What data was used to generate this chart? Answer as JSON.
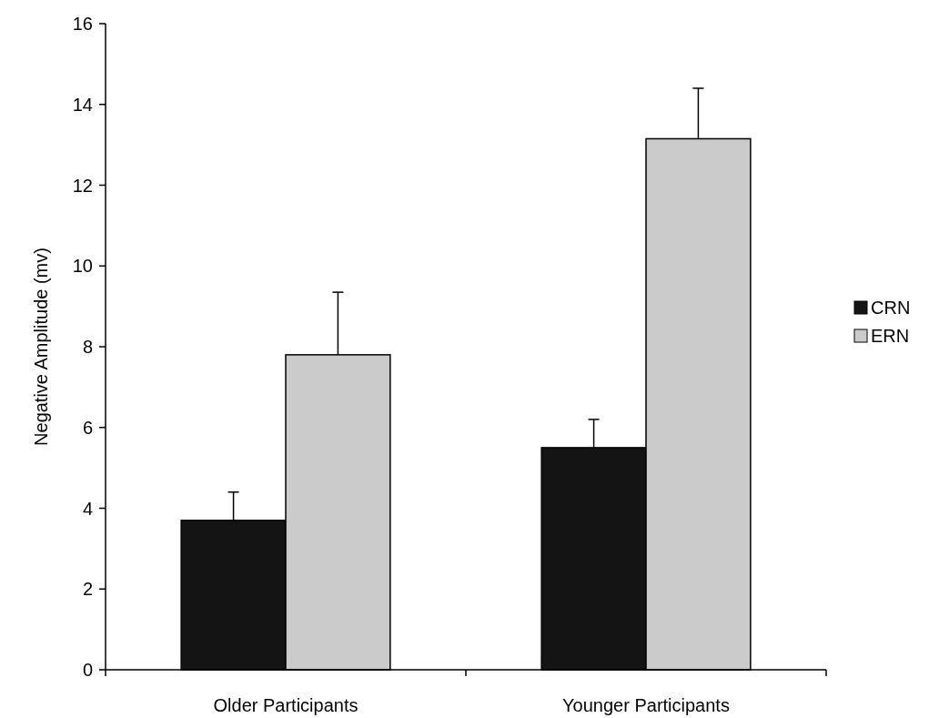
{
  "chart_data": {
    "type": "bar",
    "ylabel": "Negative Amplitude (mv)",
    "categories": [
      "Older Participants",
      "Younger Participants"
    ],
    "series": [
      {
        "name": "CRN",
        "color": "#141414",
        "values": [
          3.7,
          5.5
        ],
        "errors": [
          [
            3.7,
            4.4
          ],
          [
            5.5,
            6.2
          ]
        ]
      },
      {
        "name": "ERN",
        "color": "#cbcbcb",
        "values": [
          7.8,
          13.15
        ],
        "errors": [
          [
            7.8,
            9.35
          ],
          [
            13.15,
            14.4
          ]
        ]
      }
    ],
    "ylim": [
      0,
      16
    ],
    "yticks": [
      0,
      2,
      4,
      6,
      8,
      10,
      12,
      14,
      16
    ],
    "grid": false,
    "legend": "right"
  }
}
